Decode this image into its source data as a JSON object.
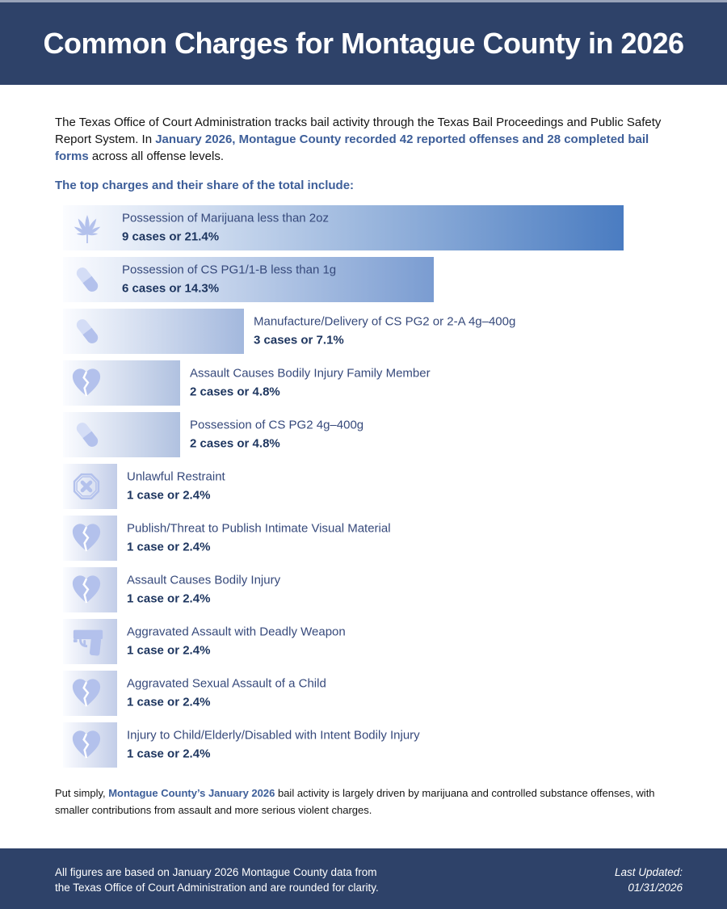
{
  "header": {
    "title": "Common Charges for Montague County in 2026"
  },
  "intro": {
    "pre": "The Texas Office of Court Administration tracks bail activity through the Texas Bail Proceedings and Public Safety Report System. In ",
    "highlight": "January 2026, Montague County recorded 42 reported offenses and 28 completed bail forms",
    "post": " across all offense levels."
  },
  "colors": {
    "navy": "#2e4269",
    "accent_blue": "#3d5e99",
    "icon_periwinkle": "#b3c1ec",
    "bar_gradient_start": "#fbfcff"
  },
  "chart_data": {
    "type": "bar",
    "title": "The top charges and their share of the total include:",
    "unit": "cases",
    "total_reported_offenses": 42,
    "completed_bail_forms": 28,
    "bars": [
      {
        "label": "Possession of Marijuana less than 2oz",
        "cases": 9,
        "pct": 21.4,
        "stat": "9 cases or 21.4%",
        "icon": "cannabis-leaf",
        "bar_end_color": "#4a7cc1"
      },
      {
        "label": "Possession of CS PG1/1-B less than 1g",
        "cases": 6,
        "pct": 14.3,
        "stat": "6 cases or 14.3%",
        "icon": "pill",
        "bar_end_color": "#7a9cd1"
      },
      {
        "label": "Manufacture/Delivery of CS PG2 or 2-A 4g–400g",
        "cases": 3,
        "pct": 7.1,
        "stat": "3 cases or 7.1%",
        "icon": "pill",
        "bar_end_color": "#a3b8dd"
      },
      {
        "label": "Assault Causes Bodily Injury Family Member",
        "cases": 2,
        "pct": 4.8,
        "stat": "2 cases or 4.8%",
        "icon": "broken-heart",
        "bar_end_color": "#b0c1e0"
      },
      {
        "label": "Possession of CS PG2 4g–400g",
        "cases": 2,
        "pct": 4.8,
        "stat": "2 cases or 4.8%",
        "icon": "pill",
        "bar_end_color": "#b0c1e0"
      },
      {
        "label": "Unlawful Restraint",
        "cases": 1,
        "pct": 2.4,
        "stat": "1 case or 2.4%",
        "icon": "octagon-x",
        "bar_end_color": "#c2cde8"
      },
      {
        "label": "Publish/Threat to Publish Intimate Visual Material",
        "cases": 1,
        "pct": 2.4,
        "stat": "1 case or 2.4%",
        "icon": "broken-heart",
        "bar_end_color": "#c2cde8"
      },
      {
        "label": "Assault Causes Bodily Injury",
        "cases": 1,
        "pct": 2.4,
        "stat": "1 case or 2.4%",
        "icon": "broken-heart",
        "bar_end_color": "#c2cde8"
      },
      {
        "label": "Aggravated Assault with Deadly Weapon",
        "cases": 1,
        "pct": 2.4,
        "stat": "1 case or 2.4%",
        "icon": "handgun",
        "bar_end_color": "#c2cde8"
      },
      {
        "label": "Aggravated Sexual Assault of a Child",
        "cases": 1,
        "pct": 2.4,
        "stat": "1 case or 2.4%",
        "icon": "broken-heart",
        "bar_end_color": "#c2cde8"
      },
      {
        "label": "Injury to Child/Elderly/Disabled with Intent Bodily Injury",
        "cases": 1,
        "pct": 2.4,
        "stat": "1 case or 2.4%",
        "icon": "broken-heart",
        "bar_end_color": "#c2cde8"
      }
    ]
  },
  "summary": {
    "pre": "Put simply, ",
    "highlight": "Montague County’s January 2026",
    "post": " bail activity is largely driven by marijuana and controlled substance offenses, with smaller contributions from assault and more serious violent charges."
  },
  "footer": {
    "note_line1": "All figures are based on January 2026 Montague County data from",
    "note_line2": "the Texas Office of Court Administration and are rounded for clarity.",
    "updated_label": "Last Updated:",
    "updated_date": "01/31/2026"
  }
}
